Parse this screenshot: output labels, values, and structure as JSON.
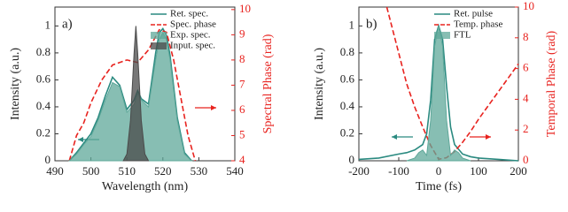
{
  "chart_data": [
    {
      "type": "line",
      "annotation": "a)",
      "x_label": "Wavelength (nm)",
      "y_label": "Intensity (a.u.)",
      "y2_label": "Spectral Phase (rad)",
      "xlim": [
        490,
        540
      ],
      "xticks": [
        490,
        500,
        510,
        520,
        530,
        540
      ],
      "ylim": [
        0,
        1.14
      ],
      "yticks": [
        0,
        0.2,
        0.4,
        0.6,
        0.8,
        1
      ],
      "y2lim": [
        4,
        10.1
      ],
      "y2ticks": [
        4,
        5,
        6,
        7,
        8,
        9,
        10
      ],
      "legend": "upper right",
      "series": [
        {
          "name": "Ret. spec.",
          "color": "#2a8a80",
          "fill": false,
          "dash": false,
          "x": [
            494,
            496,
            498,
            500,
            502,
            504,
            506,
            508,
            510,
            512,
            513,
            514,
            516,
            518,
            519,
            520,
            521,
            522,
            524,
            526,
            528
          ],
          "values": [
            0,
            0.06,
            0.13,
            0.2,
            0.32,
            0.48,
            0.62,
            0.56,
            0.38,
            0.45,
            0.52,
            0.46,
            0.42,
            0.8,
            0.95,
            0.98,
            0.93,
            0.78,
            0.32,
            0.06,
            0
          ]
        },
        {
          "name": "Spec. phase",
          "color": "#e8231f",
          "fill": false,
          "dash": true,
          "axis": "y2",
          "x": [
            494,
            496,
            498,
            500,
            503,
            506,
            510,
            513,
            516,
            519,
            521,
            523,
            525,
            527,
            529
          ],
          "values": [
            4,
            5,
            5.5,
            6.3,
            7.2,
            7.8,
            8.0,
            7.9,
            8.4,
            9.2,
            9.1,
            8.0,
            6.5,
            5,
            4
          ]
        },
        {
          "name": "Exp. spec.",
          "color": "#5fa89a",
          "fill": true,
          "dash": false,
          "x": [
            494,
            496,
            498,
            500,
            502,
            504,
            506,
            508,
            510,
            512,
            513,
            514,
            516,
            518,
            519,
            520,
            521,
            522,
            524,
            526,
            528
          ],
          "values": [
            0,
            0.05,
            0.12,
            0.18,
            0.3,
            0.45,
            0.58,
            0.55,
            0.36,
            0.42,
            0.5,
            0.45,
            0.4,
            0.75,
            0.9,
            0.95,
            0.9,
            0.75,
            0.3,
            0.05,
            0
          ]
        },
        {
          "name": "Input. spec.",
          "color": "#4a4a4a",
          "fill": true,
          "dash": false,
          "x": [
            509,
            510,
            511,
            512,
            512.5,
            513,
            514,
            515,
            516
          ],
          "values": [
            0,
            0.05,
            0.3,
            0.8,
            1,
            0.8,
            0.3,
            0.05,
            0
          ]
        }
      ]
    },
    {
      "type": "line",
      "annotation": "b)",
      "x_label": "Time (fs)",
      "y_label": "Intensity (a.u.)",
      "y2_label": "Temporal Phase (rad)",
      "xlim": [
        -200,
        200
      ],
      "xticks": [
        -200,
        -100,
        0,
        100,
        200
      ],
      "ylim": [
        0,
        1.14
      ],
      "yticks": [
        0,
        0.2,
        0.4,
        0.6,
        0.8,
        1
      ],
      "y2lim": [
        0,
        10
      ],
      "y2ticks": [
        0,
        2,
        4,
        6,
        8,
        10
      ],
      "legend": "upper right",
      "series": [
        {
          "name": "Ret. pulse",
          "color": "#2a8a80",
          "fill": false,
          "dash": false,
          "x": [
            -200,
            -150,
            -100,
            -80,
            -60,
            -40,
            -30,
            -20,
            -10,
            0,
            10,
            20,
            30,
            40,
            60,
            80,
            100,
            150,
            200
          ],
          "values": [
            0.01,
            0.02,
            0.05,
            0.06,
            0.08,
            0.12,
            0.2,
            0.45,
            0.9,
            1,
            0.9,
            0.55,
            0.25,
            0.12,
            0.05,
            0.03,
            0.02,
            0.01,
            0
          ]
        },
        {
          "name": "Temp. phase",
          "color": "#e8231f",
          "fill": false,
          "dash": true,
          "axis": "y2",
          "x": [
            -130,
            -120,
            -100,
            -80,
            -60,
            -40,
            -20,
            0,
            20,
            40,
            60,
            80,
            100,
            150,
            200
          ],
          "values": [
            10,
            9,
            7,
            5,
            3.5,
            2.2,
            1,
            0.1,
            0.2,
            0.6,
            1.2,
            1.9,
            2.7,
            4.5,
            6.3
          ]
        },
        {
          "name": "FTL",
          "color": "#5fa89a",
          "fill": true,
          "dash": false,
          "x": [
            -80,
            -60,
            -50,
            -40,
            -30,
            -20,
            -10,
            0,
            10,
            20,
            30,
            40,
            50,
            60,
            80
          ],
          "values": [
            0,
            0.02,
            0.06,
            0.08,
            0.04,
            0.3,
            0.85,
            1,
            0.85,
            0.3,
            0.04,
            0.08,
            0.06,
            0.02,
            0
          ]
        }
      ]
    }
  ]
}
